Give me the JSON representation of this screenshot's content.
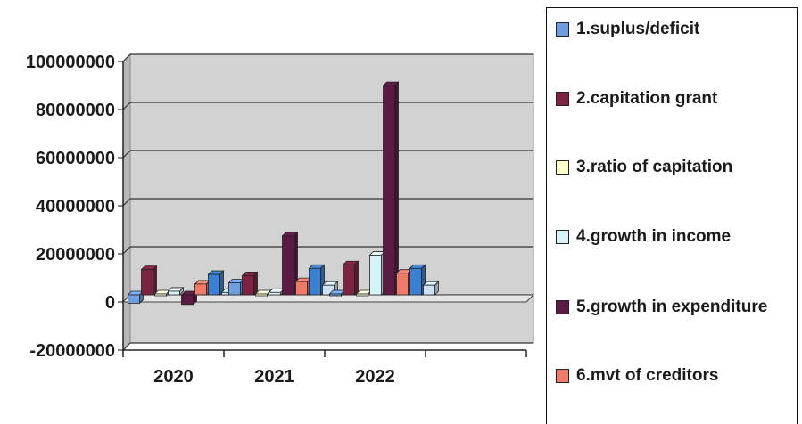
{
  "chart_data": {
    "type": "bar",
    "categories": [
      "2020",
      "2021",
      "2022"
    ],
    "ylim": [
      -20000000,
      100000000
    ],
    "yticks": [
      -20000000,
      0,
      20000000,
      40000000,
      60000000,
      80000000,
      100000000
    ],
    "ytick_labels": [
      "-20000000",
      "0",
      "20000000",
      "40000000",
      "60000000",
      "80000000",
      "100000000"
    ],
    "grid": true,
    "legend_position": "right",
    "series": [
      {
        "name": "1.suplus/deficit",
        "color": "#6f9ee0",
        "values": [
          -3500000,
          5000000,
          0
        ]
      },
      {
        "name": "2.capitation grant",
        "color": "#7b2340",
        "values": [
          10500000,
          8000000,
          12500000
        ]
      },
      {
        "name": "3.ratio of capitation",
        "color": "#ffffcc",
        "values": [
          0,
          0,
          0
        ]
      },
      {
        "name": "4.growth in income",
        "color": "#d6f3f8",
        "values": [
          1500000,
          1000000,
          16500000
        ]
      },
      {
        "name": "5.growth in expenditure",
        "color": "#5b1a44",
        "values": [
          -4000000,
          24500000,
          87000000
        ]
      },
      {
        "name": "6.mvt of creditors",
        "color": "#f07a68",
        "values": [
          4500000,
          5500000,
          9000000
        ]
      },
      {
        "name": "",
        "color": "#3a7fd0",
        "values": [
          8500000,
          11000000,
          11000000
        ]
      },
      {
        "name": "",
        "color": "#cde0f5",
        "values": [
          1000000,
          4000000,
          4000000
        ]
      }
    ]
  }
}
